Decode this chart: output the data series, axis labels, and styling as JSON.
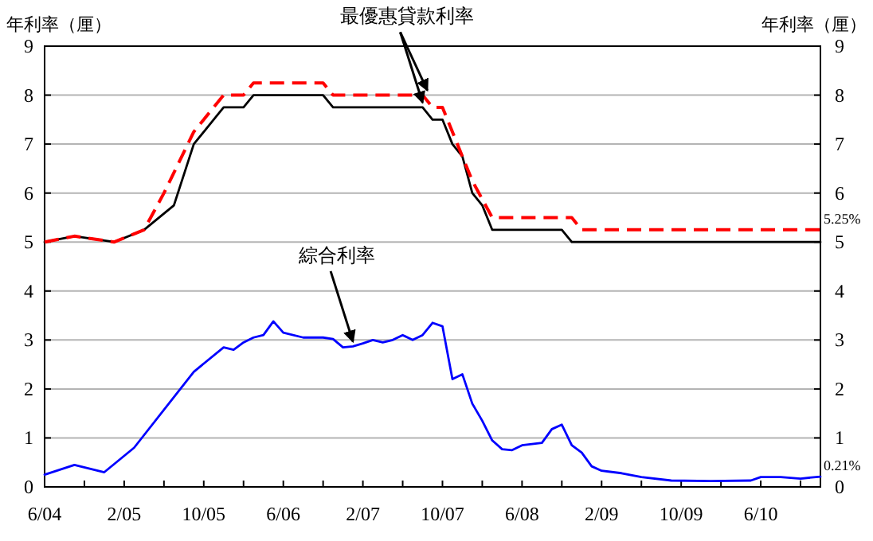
{
  "chart_data": {
    "type": "line",
    "ylabel": "年利率（厘）",
    "y2label": "年利率（厘）",
    "xlim": [
      "2004-06",
      "2010-12"
    ],
    "xticks": [
      {
        "value": "2004-06",
        "label": "6/04"
      },
      {
        "value": "2004-10",
        "label": null
      },
      {
        "value": "2005-02",
        "label": "2/05"
      },
      {
        "value": "2005-06",
        "label": null
      },
      {
        "value": "2005-10",
        "label": "10/05"
      },
      {
        "value": "2006-02",
        "label": null
      },
      {
        "value": "2006-06",
        "label": "6/06"
      },
      {
        "value": "2006-10",
        "label": null
      },
      {
        "value": "2007-02",
        "label": "2/07"
      },
      {
        "value": "2007-06",
        "label": null
      },
      {
        "value": "2007-10",
        "label": "10/07"
      },
      {
        "value": "2008-02",
        "label": null
      },
      {
        "value": "2008-06",
        "label": "6/08"
      },
      {
        "value": "2008-10",
        "label": null
      },
      {
        "value": "2009-02",
        "label": "2/09"
      },
      {
        "value": "2009-06",
        "label": null
      },
      {
        "value": "2009-10",
        "label": "10/09"
      },
      {
        "value": "2010-02",
        "label": null
      },
      {
        "value": "2010-06",
        "label": "6/10"
      },
      {
        "value": "2010-10",
        "label": null
      }
    ],
    "ylim": [
      0,
      9
    ],
    "yticks": [
      0,
      1,
      2,
      3,
      4,
      5,
      6,
      7,
      8,
      9
    ],
    "y2lim": [
      0,
      9
    ],
    "y2ticks": [
      0,
      1,
      2,
      3,
      4,
      5,
      6,
      7,
      8,
      9
    ],
    "grid": "y",
    "series": [
      {
        "color": "#000000",
        "line_style": "solid",
        "x": [
          "2004-06",
          "2004-09",
          "2005-01",
          "2005-04",
          "2005-07",
          "2005-09",
          "2005-12",
          "2006-02",
          "2006-03",
          "2006-10",
          "2006-11",
          "2007-08",
          "2007-09",
          "2007-10",
          "2007-11",
          "2007-12",
          "2008-01",
          "2008-02",
          "2008-03",
          "2008-10",
          "2008-11",
          "2010-12"
        ],
        "values": [
          5.0,
          5.12,
          5.0,
          5.25,
          5.75,
          7.0,
          7.75,
          7.75,
          8.0,
          8.0,
          7.75,
          7.75,
          7.5,
          7.5,
          7.0,
          6.75,
          6.0,
          5.75,
          5.25,
          5.25,
          5.0,
          5.0
        ]
      },
      {
        "color": "#ff0000",
        "line_style": "dashed",
        "x": [
          "2004-06",
          "2004-09",
          "2005-01",
          "2005-04",
          "2005-06",
          "2005-09",
          "2005-12",
          "2006-02",
          "2006-03",
          "2006-10",
          "2006-11",
          "2007-08",
          "2007-09",
          "2007-10",
          "2007-11",
          "2008-01",
          "2008-03",
          "2008-11",
          "2008-12",
          "2010-12"
        ],
        "values": [
          5.0,
          5.12,
          5.0,
          5.25,
          6.0,
          7.25,
          8.0,
          8.0,
          8.25,
          8.25,
          8.0,
          8.0,
          7.75,
          7.75,
          7.25,
          6.25,
          5.5,
          5.5,
          5.25,
          5.25
        ],
        "value_labels": [
          null,
          null,
          null,
          null,
          null,
          null,
          null,
          null,
          null,
          null,
          null,
          null,
          null,
          null,
          null,
          null,
          null,
          null,
          null,
          "5.25%"
        ]
      },
      {
        "color": "#0000ff",
        "line_style": "solid",
        "x": [
          "2004-06",
          "2004-09",
          "2004-12",
          "2005-03",
          "2005-09",
          "2005-12",
          "2006-01",
          "2006-02",
          "2006-03",
          "2006-04",
          "2006-05",
          "2006-06",
          "2006-08",
          "2006-10",
          "2006-11",
          "2006-12",
          "2007-01",
          "2007-02",
          "2007-03",
          "2007-04",
          "2007-05",
          "2007-06",
          "2007-07",
          "2007-08",
          "2007-09",
          "2007-10",
          "2007-11",
          "2007-12",
          "2008-01",
          "2008-02",
          "2008-03",
          "2008-04",
          "2008-05",
          "2008-06",
          "2008-08",
          "2008-09",
          "2008-10",
          "2008-11",
          "2008-12",
          "2009-01",
          "2009-02",
          "2009-04",
          "2009-06",
          "2009-09",
          "2010-01",
          "2010-05",
          "2010-06",
          "2010-08",
          "2010-10",
          "2010-12"
        ],
        "values": [
          0.25,
          0.45,
          0.3,
          0.8,
          2.35,
          2.85,
          2.8,
          2.95,
          3.05,
          3.1,
          3.38,
          3.15,
          3.05,
          3.05,
          3.02,
          2.85,
          2.87,
          2.93,
          3.0,
          2.95,
          3.0,
          3.1,
          3.0,
          3.1,
          3.35,
          3.28,
          2.2,
          2.3,
          1.7,
          1.35,
          0.95,
          0.77,
          0.75,
          0.85,
          0.9,
          1.18,
          1.27,
          0.85,
          0.7,
          0.42,
          0.33,
          0.28,
          0.2,
          0.13,
          0.12,
          0.13,
          0.2,
          0.2,
          0.17,
          0.21
        ],
        "value_labels": [
          null,
          null,
          null,
          null,
          null,
          null,
          null,
          null,
          null,
          null,
          null,
          null,
          null,
          null,
          null,
          null,
          null,
          null,
          null,
          null,
          null,
          null,
          null,
          null,
          null,
          null,
          null,
          null,
          null,
          null,
          null,
          null,
          null,
          null,
          null,
          null,
          null,
          null,
          null,
          null,
          null,
          null,
          null,
          null,
          null,
          null,
          null,
          null,
          null,
          "0.21%"
        ]
      }
    ],
    "annotations": [
      {
        "text": "最優惠貸款利率",
        "x": "2007-08",
        "y": 7.75
      },
      {
        "text": "綜合利率",
        "x": "2007-01",
        "y": 2.87
      }
    ]
  }
}
